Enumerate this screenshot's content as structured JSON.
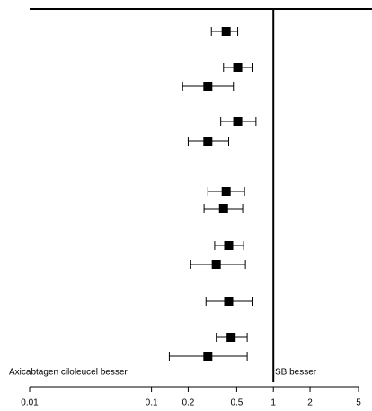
{
  "chart_data": {
    "type": "forest",
    "log_x": true,
    "xlim": [
      0.01,
      5
    ],
    "xticks": [
      0.01,
      0.1,
      0.2,
      0.5,
      1,
      2,
      5
    ],
    "reference": 1,
    "left_label": "Axicabtagen ciloleucel besser",
    "right_label": "SB besser",
    "values": [
      0.41,
      0.51,
      0.29,
      0.51,
      0.29,
      0.41,
      0.39,
      0.43,
      0.34,
      0.43,
      0.45,
      0.29
    ],
    "lower": [
      0.31,
      0.39,
      0.18,
      0.37,
      0.2,
      0.29,
      0.27,
      0.33,
      0.21,
      0.28,
      0.34,
      0.14
    ],
    "upper": [
      0.51,
      0.68,
      0.47,
      0.72,
      0.43,
      0.58,
      0.56,
      0.57,
      0.59,
      0.68,
      0.61,
      0.61
    ],
    "color": "#000000"
  }
}
